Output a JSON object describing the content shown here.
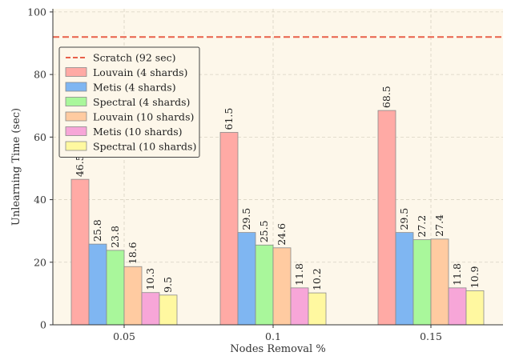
{
  "chart_data": {
    "type": "bar",
    "xlabel": "Nodes Removal %",
    "ylabel": "Unlearning Time (sec)",
    "categories": [
      "0.05",
      "0.1",
      "0.15"
    ],
    "ylim": [
      0,
      101
    ],
    "yticks": [
      0,
      20,
      40,
      60,
      80,
      100
    ],
    "grid": true,
    "legend_position": "upper-left",
    "reference_line": {
      "name": "Scratch (92 sec)",
      "value": 92,
      "color": "#e8604a"
    },
    "series": [
      {
        "name": "Louvain (4 shards)",
        "color": "#ffaaa5",
        "values": [
          46.5,
          61.5,
          68.5
        ]
      },
      {
        "name": "Metis (4 shards)",
        "color": "#7fb6f2",
        "values": [
          25.8,
          29.5,
          29.5
        ]
      },
      {
        "name": "Spectral (4 shards)",
        "color": "#a9f79b",
        "values": [
          23.8,
          25.5,
          27.2
        ]
      },
      {
        "name": "Louvain (10 shards)",
        "color": "#ffcba1",
        "values": [
          18.6,
          24.6,
          27.4
        ]
      },
      {
        "name": "Metis (10 shards)",
        "color": "#f7a6d8",
        "values": [
          10.3,
          11.8,
          11.8
        ]
      },
      {
        "name": "Spectral (10 shards)",
        "color": "#fff8a0",
        "values": [
          9.5,
          10.2,
          10.9
        ]
      }
    ]
  }
}
